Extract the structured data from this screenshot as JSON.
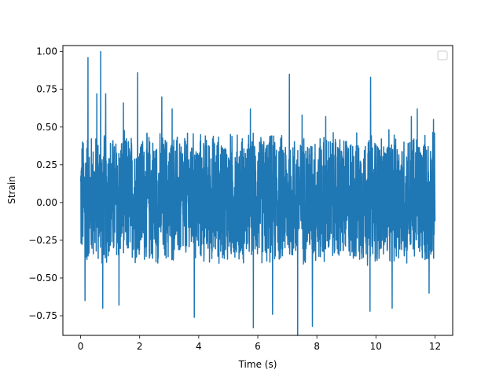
{
  "chart_data": {
    "type": "line",
    "title": "",
    "xlabel": "Time (s)",
    "ylabel": "Strain",
    "xlim": [
      -0.6,
      12.6
    ],
    "ylim": [
      -0.88,
      1.04
    ],
    "xticks": [
      0,
      2,
      4,
      6,
      8,
      10,
      12
    ],
    "xtick_labels": [
      "0",
      "2",
      "4",
      "6",
      "8",
      "10",
      "12"
    ],
    "yticks": [
      -0.75,
      -0.5,
      -0.25,
      0.0,
      0.25,
      0.5,
      0.75,
      1.0
    ],
    "ytick_labels": [
      "−0.75",
      "−0.50",
      "−0.25",
      "0.00",
      "0.25",
      "0.50",
      "0.75",
      "1.00"
    ],
    "grid": false,
    "legend": {
      "placement": "upper right",
      "entries": []
    },
    "series": [
      {
        "color": "#1f77b4",
        "description": "Dense noise-like oscillation over 0–12 s, bulk between about -0.4 and 0.45",
        "x_range": [
          0,
          12
        ],
        "y_bulk_range": [
          -0.4,
          0.45
        ],
        "peaks": [
          {
            "x": 0.68,
            "y": 1.0
          },
          {
            "x": 0.25,
            "y": 0.96
          },
          {
            "x": 1.93,
            "y": 0.86
          },
          {
            "x": 7.07,
            "y": 0.85
          },
          {
            "x": 9.82,
            "y": 0.83
          },
          {
            "x": 0.55,
            "y": 0.72
          },
          {
            "x": 0.85,
            "y": 0.72
          },
          {
            "x": 2.75,
            "y": 0.7
          },
          {
            "x": 1.45,
            "y": 0.66
          },
          {
            "x": 3.1,
            "y": 0.62
          },
          {
            "x": 5.75,
            "y": 0.62
          },
          {
            "x": 7.5,
            "y": 0.58
          },
          {
            "x": 8.3,
            "y": 0.57
          },
          {
            "x": 11.2,
            "y": 0.57
          },
          {
            "x": 11.4,
            "y": 0.62
          },
          {
            "x": 11.95,
            "y": 0.55
          }
        ],
        "troughs": [
          {
            "x": 7.35,
            "y": -0.88
          },
          {
            "x": 5.85,
            "y": -0.83
          },
          {
            "x": 7.85,
            "y": -0.82
          },
          {
            "x": 3.85,
            "y": -0.76
          },
          {
            "x": 0.15,
            "y": -0.65
          },
          {
            "x": 0.75,
            "y": -0.7
          },
          {
            "x": 1.3,
            "y": -0.68
          },
          {
            "x": 6.5,
            "y": -0.74
          },
          {
            "x": 9.8,
            "y": -0.72
          },
          {
            "x": 10.55,
            "y": -0.7
          },
          {
            "x": 11.8,
            "y": -0.6
          }
        ]
      }
    ]
  }
}
